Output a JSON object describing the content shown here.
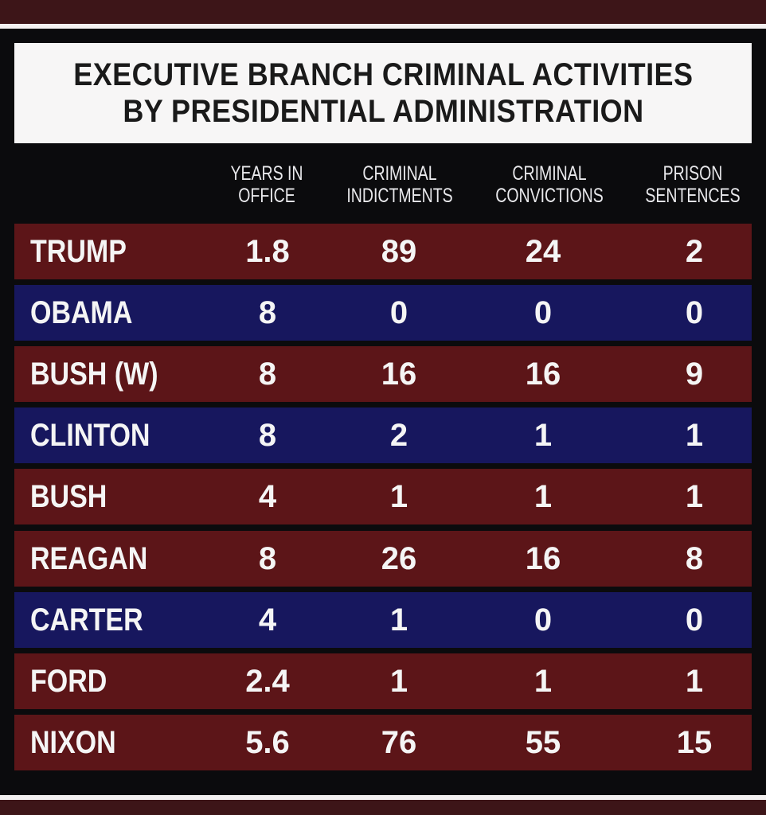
{
  "chart_data": {
    "type": "table",
    "title_lines": [
      "EXECUTIVE BRANCH CRIMINAL ACTIVITIES",
      "BY PRESIDENTIAL ADMINISTRATION"
    ],
    "columns": [
      [
        "YEARS IN",
        "OFFICE"
      ],
      [
        "CRIMINAL",
        "INDICTMENTS"
      ],
      [
        "CRIMINAL",
        "CONVICTIONS"
      ],
      [
        "PRISON",
        "SENTENCES"
      ]
    ],
    "rows": [
      {
        "name": "TRUMP",
        "values": [
          "1.8",
          "89",
          "24",
          "2"
        ],
        "color": "#5c1518"
      },
      {
        "name": "OBAMA",
        "values": [
          "8",
          "0",
          "0",
          "0"
        ],
        "color": "#17175e"
      },
      {
        "name": "BUSH (W)",
        "values": [
          "8",
          "16",
          "16",
          "9"
        ],
        "color": "#5c1518"
      },
      {
        "name": "CLINTON",
        "values": [
          "8",
          "2",
          "1",
          "1"
        ],
        "color": "#17175e"
      },
      {
        "name": "BUSH",
        "values": [
          "4",
          "1",
          "1",
          "1"
        ],
        "color": "#5c1518"
      },
      {
        "name": "REAGAN",
        "values": [
          "8",
          "26",
          "16",
          "8"
        ],
        "color": "#5c1518"
      },
      {
        "name": "CARTER",
        "values": [
          "4",
          "1",
          "0",
          "0"
        ],
        "color": "#17175e"
      },
      {
        "name": "FORD",
        "values": [
          "2.4",
          "1",
          "1",
          "1"
        ],
        "color": "#5c1518"
      },
      {
        "name": "NIXON",
        "values": [
          "5.6",
          "76",
          "55",
          "15"
        ],
        "color": "#5c1518"
      }
    ]
  }
}
